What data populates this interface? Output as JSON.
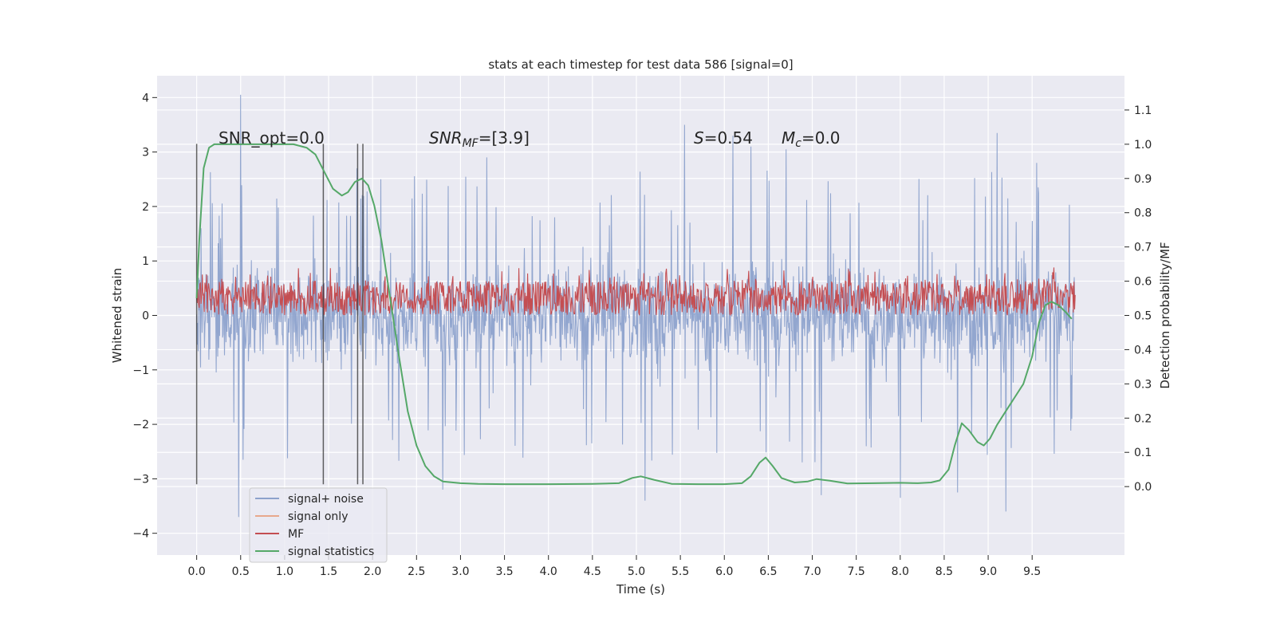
{
  "chart_data": {
    "type": "line",
    "title": "stats at each timestep for test data 586 [signal=0]",
    "xlabel": "Time (s)",
    "ylabel": "Whitened strain",
    "ylabel_right": "Detection probability/MF",
    "xlim": [
      -0.45,
      10.55
    ],
    "ylim": [
      -4.4,
      4.4
    ],
    "ylim_right": [
      -0.2,
      1.2
    ],
    "x_ticks": [
      0.0,
      0.5,
      1.0,
      1.5,
      2.0,
      2.5,
      3.0,
      3.5,
      4.0,
      4.5,
      5.0,
      5.5,
      6.0,
      6.5,
      7.0,
      7.5,
      8.0,
      8.5,
      9.0,
      9.5
    ],
    "x_tick_labels": [
      "0.0",
      "0.5",
      "1.0",
      "1.5",
      "2.0",
      "2.5",
      "3.0",
      "3.5",
      "4.0",
      "4.5",
      "5.0",
      "5.5",
      "6.0",
      "6.5",
      "7.0",
      "7.5",
      "8.0",
      "8.5",
      "9.0",
      "9.5"
    ],
    "y_ticks": [
      -4,
      -3,
      -2,
      -1,
      0,
      1,
      2,
      3,
      4
    ],
    "y_tick_labels": [
      "−4",
      "−3",
      "−2",
      "−1",
      "0",
      "1",
      "2",
      "3",
      "4"
    ],
    "y_right_ticks": [
      0.0,
      0.1,
      0.2,
      0.3,
      0.4,
      0.5,
      0.6,
      0.7,
      0.8,
      0.9,
      1.0,
      1.1
    ],
    "y_right_tick_labels": [
      "0.0",
      "0.1",
      "0.2",
      "0.3",
      "0.4",
      "0.5",
      "0.6",
      "0.7",
      "0.8",
      "0.9",
      "1.0",
      "1.1"
    ],
    "grid": true,
    "legend_placement": "lower-left",
    "annotations": {
      "snr_opt": "SNR_opt=0.0",
      "snr_mf_prefix": "SNR",
      "snr_mf_sub": "MF",
      "snr_mf_suffix": "=[3.9]",
      "s_prefix": "S",
      "s_value": "=0.54",
      "mc_prefix": "M",
      "mc_sub": "c",
      "mc_value": "=0.0"
    },
    "vertical_markers_x": [
      0.0,
      1.44,
      1.83,
      1.89
    ],
    "vertical_marker_range": [
      -3.1,
      3.15
    ],
    "series": [
      {
        "name": "signal+ noise",
        "color": "#8da2cc",
        "axis": "left",
        "kind": "noise",
        "x_range": [
          0.0,
          9.99
        ],
        "envelope_upper": 2.2,
        "envelope_lower": -2.2,
        "peaks": [
          {
            "x": 0.05,
            "y": 1.6
          },
          {
            "x": 0.5,
            "y": 4.05
          },
          {
            "x": 0.48,
            "y": -3.7
          },
          {
            "x": 1.82,
            "y": 2.7
          },
          {
            "x": 2.8,
            "y": -3.2
          },
          {
            "x": 3.3,
            "y": 2.9
          },
          {
            "x": 5.1,
            "y": -3.4
          },
          {
            "x": 5.55,
            "y": 3.5
          },
          {
            "x": 6.1,
            "y": 3.3
          },
          {
            "x": 6.3,
            "y": 3.1
          },
          {
            "x": 6.7,
            "y": 3.05
          },
          {
            "x": 7.1,
            "y": -3.3
          },
          {
            "x": 8.0,
            "y": -3.35
          },
          {
            "x": 8.65,
            "y": -3.25
          },
          {
            "x": 9.1,
            "y": 3.35
          },
          {
            "x": 9.2,
            "y": -3.6
          },
          {
            "x": 9.55,
            "y": 2.8
          },
          {
            "x": 9.95,
            "y": -1.9
          }
        ]
      },
      {
        "name": "signal only",
        "color": "#e8a88c",
        "axis": "left",
        "kind": "flat",
        "value": 0.0
      },
      {
        "name": "MF",
        "color": "#c44e52",
        "axis": "right",
        "kind": "band",
        "x_range": [
          0.0,
          9.99
        ],
        "band_lower": 0.5,
        "band_upper": 0.6,
        "spike_max": 0.64
      },
      {
        "name": "signal statistics",
        "color": "#55a868",
        "axis": "right",
        "x": [
          0.0,
          0.03,
          0.08,
          0.14,
          0.2,
          0.3,
          0.5,
          0.8,
          1.1,
          1.25,
          1.35,
          1.45,
          1.55,
          1.65,
          1.72,
          1.8,
          1.88,
          1.95,
          2.02,
          2.1,
          2.2,
          2.3,
          2.4,
          2.5,
          2.6,
          2.7,
          2.8,
          3.0,
          3.2,
          3.5,
          4.0,
          4.5,
          4.8,
          4.95,
          5.05,
          5.2,
          5.4,
          5.7,
          6.0,
          6.2,
          6.3,
          6.4,
          6.47,
          6.55,
          6.65,
          6.8,
          6.95,
          7.05,
          7.2,
          7.4,
          7.7,
          8.0,
          8.2,
          8.35,
          8.45,
          8.55,
          8.62,
          8.7,
          8.78,
          8.88,
          8.95,
          9.02,
          9.1,
          9.2,
          9.3,
          9.4,
          9.5,
          9.58,
          9.65,
          9.72,
          9.8,
          9.88,
          9.95
        ],
        "y": [
          0.55,
          0.72,
          0.93,
          0.99,
          1.0,
          1.0,
          1.0,
          1.0,
          1.0,
          0.99,
          0.97,
          0.92,
          0.87,
          0.85,
          0.86,
          0.89,
          0.9,
          0.88,
          0.82,
          0.72,
          0.55,
          0.38,
          0.22,
          0.12,
          0.06,
          0.03,
          0.015,
          0.01,
          0.008,
          0.007,
          0.007,
          0.008,
          0.01,
          0.025,
          0.03,
          0.02,
          0.008,
          0.007,
          0.007,
          0.01,
          0.03,
          0.07,
          0.085,
          0.06,
          0.025,
          0.012,
          0.015,
          0.022,
          0.017,
          0.009,
          0.01,
          0.011,
          0.01,
          0.012,
          0.018,
          0.05,
          0.12,
          0.185,
          0.165,
          0.13,
          0.12,
          0.14,
          0.18,
          0.22,
          0.26,
          0.3,
          0.38,
          0.48,
          0.53,
          0.54,
          0.53,
          0.51,
          0.49
        ]
      }
    ]
  }
}
